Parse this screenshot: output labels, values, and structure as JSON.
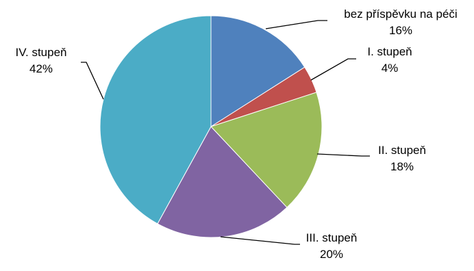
{
  "chart_data": {
    "type": "pie",
    "title": "",
    "slices": [
      {
        "label": "bez příspěvku na péči",
        "value": 16,
        "value_label": "16%",
        "color": "#4F81BD"
      },
      {
        "label": "I. stupeň",
        "value": 4,
        "value_label": "4%",
        "color": "#C0504D"
      },
      {
        "label": "II. stupeň",
        "value": 18,
        "value_label": "18%",
        "color": "#9BBB59"
      },
      {
        "label": "III. stupeň",
        "value": 20,
        "value_label": "20%",
        "color": "#8064A2"
      },
      {
        "label": "IV. stupeň",
        "value": 42,
        "value_label": "42%",
        "color": "#4BACC6"
      }
    ],
    "start_angle": "12 o'clock",
    "direction": "clockwise",
    "legend": "none",
    "data_labels": "outside with leader lines"
  }
}
